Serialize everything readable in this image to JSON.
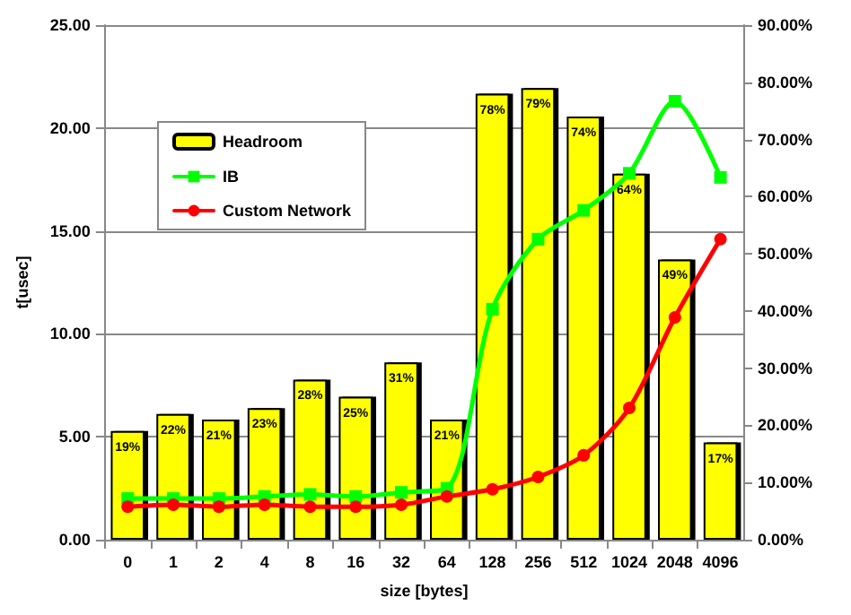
{
  "chart_data": {
    "type": "bar",
    "xlabel": "size [bytes]",
    "ylabel": "t[usec]",
    "categories": [
      "0",
      "1",
      "2",
      "4",
      "8",
      "16",
      "32",
      "64",
      "128",
      "256",
      "512",
      "1024",
      "2048",
      "4096"
    ],
    "series": [
      {
        "name": "Headroom",
        "axis": "y2",
        "color": "#ffff00",
        "values": [
          19,
          22,
          21,
          23,
          28,
          25,
          31,
          21,
          78,
          79,
          74,
          64,
          49,
          17
        ],
        "value_labels": [
          "19%",
          "22%",
          "21%",
          "23%",
          "28%",
          "25%",
          "31%",
          "21%",
          "78%",
          "79%",
          "74%",
          "64%",
          "49%",
          "17%"
        ]
      },
      {
        "name": "IB",
        "type": "line",
        "color": "#00ff00",
        "marker": "square",
        "values": [
          2.0,
          2.0,
          2.0,
          2.1,
          2.2,
          2.1,
          2.3,
          2.5,
          11.2,
          14.6,
          16.0,
          17.8,
          21.3,
          17.6
        ]
      },
      {
        "name": "Custom Network",
        "type": "line",
        "color": "#ff0000",
        "marker": "circle",
        "values": [
          1.6,
          1.7,
          1.6,
          1.7,
          1.6,
          1.6,
          1.7,
          2.1,
          2.45,
          3.05,
          4.1,
          6.4,
          10.8,
          14.6
        ]
      }
    ],
    "ylim": [
      0,
      25
    ],
    "yticks": [
      {
        "value": 0,
        "label": "0.00"
      },
      {
        "value": 5,
        "label": "5.00"
      },
      {
        "value": 10,
        "label": "10.00"
      },
      {
        "value": 15,
        "label": "15.00"
      },
      {
        "value": 20,
        "label": "20.00"
      },
      {
        "value": 25,
        "label": "25.00"
      }
    ],
    "y2lim": [
      0,
      90
    ],
    "y2ticks": [
      {
        "value": 0,
        "label": "0.00%"
      },
      {
        "value": 10,
        "label": "10.00%"
      },
      {
        "value": 20,
        "label": "20.00%"
      },
      {
        "value": 30,
        "label": "30.00%"
      },
      {
        "value": 40,
        "label": "40.00%"
      },
      {
        "value": 50,
        "label": "50.00%"
      },
      {
        "value": 60,
        "label": "60.00%"
      },
      {
        "value": 70,
        "label": "70.00%"
      },
      {
        "value": 80,
        "label": "80.00%"
      },
      {
        "value": 90,
        "label": "90.00%"
      }
    ],
    "grid": "y",
    "legend": "top left",
    "line_style": "solid"
  }
}
